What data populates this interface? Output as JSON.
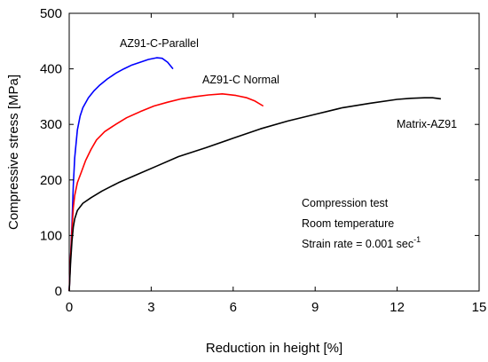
{
  "chart_data": {
    "type": "line",
    "title": "",
    "xlabel": "Reduction in height [%]",
    "ylabel": "Compressive stress [MPa]",
    "xlim": [
      0,
      15
    ],
    "ylim": [
      0,
      500
    ],
    "x_ticks": [
      "0",
      "3",
      "6",
      "9",
      "12",
      "15"
    ],
    "y_ticks": [
      "0",
      "100",
      "200",
      "300",
      "400",
      "500"
    ],
    "grid": false,
    "legend": "none",
    "annotations": {
      "line1": "Compression test",
      "line2": "Room temperature",
      "line3_main": "Strain rate = 0.001 sec",
      "line3_sup": "-1"
    },
    "series": [
      {
        "name": "AZ91-C-Parallel",
        "color": "#0000ff",
        "x": [
          0,
          0.05,
          0.1,
          0.15,
          0.2,
          0.3,
          0.4,
          0.5,
          0.7,
          0.9,
          1.1,
          1.4,
          1.7,
          2.0,
          2.3,
          2.6,
          2.9,
          3.2,
          3.4,
          3.6,
          3.8
        ],
        "y": [
          0,
          60,
          120,
          190,
          240,
          290,
          315,
          330,
          348,
          360,
          370,
          382,
          392,
          400,
          407,
          412,
          417,
          420,
          419,
          412,
          400
        ]
      },
      {
        "name": "AZ91-C Normal",
        "color": "#ff0000",
        "x": [
          0,
          0.05,
          0.1,
          0.15,
          0.2,
          0.3,
          0.45,
          0.6,
          0.8,
          1.0,
          1.3,
          1.7,
          2.1,
          2.6,
          3.1,
          3.6,
          4.1,
          4.6,
          5.1,
          5.6,
          6.1,
          6.5,
          6.8,
          7.1
        ],
        "y": [
          0,
          60,
          110,
          150,
          172,
          195,
          215,
          235,
          255,
          272,
          287,
          300,
          312,
          323,
          333,
          340,
          346,
          350,
          353,
          355,
          352,
          348,
          342,
          333
        ]
      },
      {
        "name": "Matrix-AZ91",
        "color": "#000000",
        "x": [
          0,
          0.05,
          0.1,
          0.15,
          0.2,
          0.3,
          0.5,
          0.8,
          1.2,
          1.8,
          2.5,
          3.2,
          4.0,
          5.0,
          6.0,
          7.0,
          8.0,
          9.0,
          10.0,
          11.0,
          12.0,
          12.5,
          13.0,
          13.3,
          13.6
        ],
        "y": [
          0,
          50,
          90,
          115,
          130,
          145,
          158,
          168,
          180,
          195,
          210,
          225,
          242,
          258,
          275,
          292,
          306,
          318,
          330,
          338,
          345,
          347,
          348,
          348,
          346
        ]
      }
    ]
  }
}
